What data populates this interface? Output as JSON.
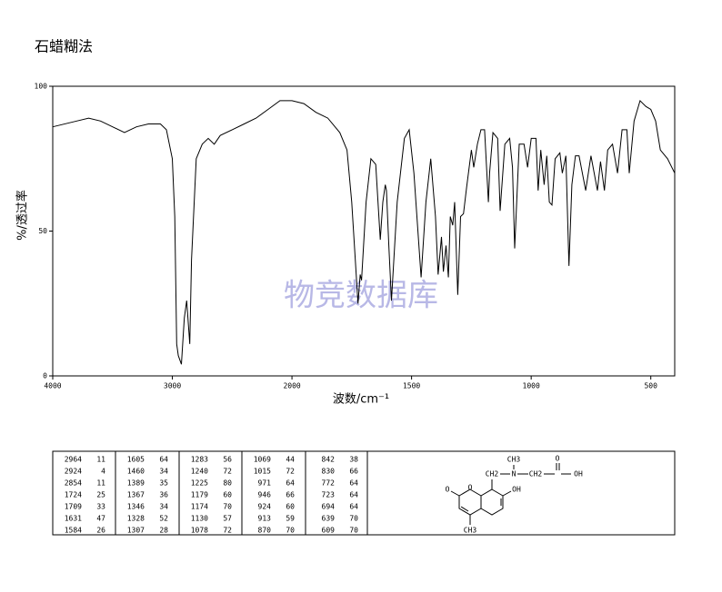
{
  "chart_data": {
    "type": "line",
    "title": "石蜡糊法",
    "xlabel": "波数/cm⁻¹",
    "ylabel": "%/透过率",
    "watermark": "物竞数据库",
    "color": "#000000",
    "x": [
      4000,
      3800,
      3700,
      3600,
      3500,
      3400,
      3300,
      3200,
      3100,
      3050,
      3000,
      2980,
      2964,
      2950,
      2924,
      2900,
      2880,
      2854,
      2840,
      2800,
      2750,
      2700,
      2650,
      2600,
      2500,
      2400,
      2300,
      2200,
      2100,
      2000,
      1950,
      1900,
      1850,
      1800,
      1770,
      1750,
      1724,
      1715,
      1709,
      1690,
      1670,
      1650,
      1631,
      1620,
      1610,
      1605,
      1595,
      1584,
      1560,
      1530,
      1510,
      1490,
      1460,
      1440,
      1420,
      1400,
      1389,
      1375,
      1367,
      1356,
      1346,
      1338,
      1328,
      1320,
      1307,
      1295,
      1283,
      1270,
      1250,
      1240,
      1225,
      1210,
      1195,
      1179,
      1174,
      1160,
      1140,
      1130,
      1110,
      1090,
      1078,
      1069,
      1050,
      1030,
      1015,
      1000,
      980,
      971,
      960,
      946,
      935,
      924,
      913,
      900,
      880,
      870,
      855,
      842,
      830,
      815,
      800,
      772,
      750,
      723,
      710,
      694,
      680,
      660,
      639,
      620,
      600,
      590,
      570,
      545,
      520,
      500,
      480,
      460,
      430,
      400
    ],
    "values": [
      86,
      88,
      89,
      88,
      86,
      84,
      86,
      87,
      87,
      85,
      75,
      55,
      11,
      7,
      4,
      20,
      26,
      11,
      40,
      75,
      80,
      82,
      80,
      83,
      85,
      87,
      89,
      92,
      95,
      95,
      94,
      91,
      89,
      84,
      78,
      60,
      25,
      35,
      33,
      60,
      75,
      73,
      47,
      60,
      66,
      64,
      45,
      26,
      60,
      82,
      85,
      70,
      34,
      60,
      75,
      55,
      35,
      48,
      36,
      45,
      34,
      55,
      52,
      60,
      28,
      55,
      56,
      65,
      78,
      72,
      80,
      85,
      85,
      60,
      70,
      84,
      82,
      57,
      80,
      82,
      72,
      44,
      80,
      80,
      72,
      82,
      82,
      64,
      78,
      66,
      76,
      60,
      59,
      75,
      77,
      70,
      76,
      38,
      66,
      76,
      76,
      64,
      76,
      64,
      74,
      64,
      78,
      80,
      70,
      85,
      85,
      70,
      88,
      95,
      93,
      92,
      88,
      78,
      75,
      70
    ],
    "xlim": [
      4000,
      400
    ],
    "ylim": [
      0,
      100
    ],
    "xticks": [
      4000,
      3000,
      2000,
      1500,
      1000,
      500
    ],
    "yticks": [
      0,
      50,
      100
    ]
  },
  "table": {
    "columns": [
      [
        [
          2964,
          11
        ],
        [
          2924,
          4
        ],
        [
          2854,
          11
        ],
        [
          1724,
          25
        ],
        [
          1709,
          33
        ],
        [
          1631,
          47
        ],
        [
          1584,
          26
        ]
      ],
      [
        [
          1605,
          64
        ],
        [
          1460,
          34
        ],
        [
          1389,
          35
        ],
        [
          1367,
          36
        ],
        [
          1346,
          34
        ],
        [
          1328,
          52
        ],
        [
          1307,
          28
        ]
      ],
      [
        [
          1283,
          56
        ],
        [
          1240,
          72
        ],
        [
          1225,
          80
        ],
        [
          1179,
          60
        ],
        [
          1174,
          70
        ],
        [
          1130,
          57
        ],
        [
          1078,
          72
        ]
      ],
      [
        [
          1069,
          44
        ],
        [
          1015,
          72
        ],
        [
          971,
          64
        ],
        [
          946,
          66
        ],
        [
          924,
          60
        ],
        [
          913,
          59
        ],
        [
          870,
          70
        ]
      ],
      [
        [
          842,
          38
        ],
        [
          830,
          66
        ],
        [
          772,
          64
        ],
        [
          723,
          64
        ],
        [
          694,
          64
        ],
        [
          639,
          70
        ],
        [
          609,
          70
        ]
      ]
    ]
  },
  "structure": {
    "labels": [
      "O",
      "O",
      "CH3",
      "CH2",
      "OH",
      "N",
      "CH3",
      "CH2",
      "O",
      "OH"
    ]
  }
}
